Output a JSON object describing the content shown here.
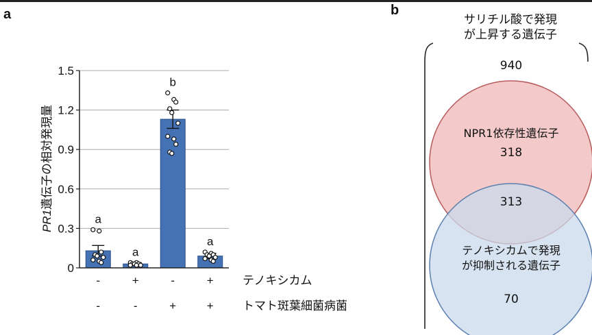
{
  "panel_a_label": "a",
  "panel_b_label": "b",
  "chart_data": [
    {
      "type": "bar",
      "ylabel_italic": "PR1",
      "ylabel": "遺伝子の相対発現量",
      "ylim": [
        0,
        1.5
      ],
      "yticks": [
        "0",
        "0.3",
        "0.6",
        "0.9",
        "1.2",
        "1.5"
      ],
      "grid": true,
      "bar_color": "#4472b4",
      "categories": [
        "1",
        "2",
        "3",
        "4"
      ],
      "values": [
        0.13,
        0.03,
        1.13,
        0.09
      ],
      "errors": [
        0.04,
        0.01,
        0.07,
        0.02
      ],
      "significance_letters": [
        "a",
        "a",
        "b",
        "a"
      ],
      "points": [
        [
          0.29,
          0.28,
          0.12,
          0.1,
          0.09,
          0.08,
          0.06,
          0.05,
          0.04
        ],
        [
          0.04,
          0.04,
          0.03,
          0.03,
          0.03,
          0.02,
          0.02,
          0.02
        ],
        [
          1.33,
          1.28,
          1.26,
          1.21,
          1.18,
          1.1,
          1.0,
          0.98,
          0.94,
          0.88,
          0.87
        ],
        [
          0.12,
          0.11,
          0.1,
          0.1,
          0.09,
          0.08,
          0.07,
          0.06,
          0.05
        ]
      ],
      "conditions": [
        {
          "label": "テノキシカム",
          "signs": [
            "-",
            "+",
            "-",
            "+"
          ]
        },
        {
          "label": "トマト斑葉細菌病菌",
          "signs": [
            "-",
            "-",
            "+",
            "+"
          ]
        }
      ]
    },
    {
      "type": "venn",
      "outer_set": {
        "label_line1": "サリチル酸で発現",
        "label_line2": "が上昇する遺伝子",
        "count": "940"
      },
      "circle_top": {
        "label": "NPR1依存性遺伝子",
        "count": "318",
        "color": "#f2c7c6",
        "stroke": "#b65a5a"
      },
      "circle_bottom": {
        "label_line1": "テノキシカムで発現",
        "label_line2": "が抑制される遺伝子",
        "count": "70",
        "color": "#c9d9eb",
        "stroke": "#5b7fb0"
      },
      "intersection_count": "313"
    }
  ]
}
